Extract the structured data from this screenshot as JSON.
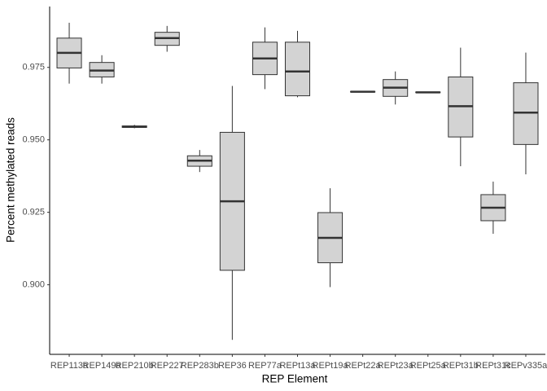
{
  "chart_data": {
    "type": "box",
    "x_label": "REP Element",
    "y_label": "Percent methylated reads",
    "categories": [
      "REP113a",
      "REP149a",
      "REP210b",
      "REP227",
      "REP283b",
      "REP36",
      "REP77a",
      "REPt13a",
      "REPt19a",
      "REPt22a",
      "REPt23a",
      "REPt25a",
      "REPt31b",
      "REPt31c",
      "REPv335a"
    ],
    "boxes": [
      {
        "low": 0.9694,
        "q1": 0.9748,
        "median": 0.98,
        "q3": 0.9851,
        "high": 0.9904
      },
      {
        "low": 0.9694,
        "q1": 0.9717,
        "median": 0.9739,
        "q3": 0.9767,
        "high": 0.9792
      },
      {
        "low": 0.954,
        "q1": 0.9543,
        "median": 0.9545,
        "q3": 0.9548,
        "high": 0.9552
      },
      {
        "low": 0.9804,
        "q1": 0.9826,
        "median": 0.9851,
        "q3": 0.9871,
        "high": 0.9893
      },
      {
        "low": 0.9389,
        "q1": 0.9409,
        "median": 0.9428,
        "q3": 0.9445,
        "high": 0.9465
      },
      {
        "low": 0.881,
        "q1": 0.905,
        "median": 0.9288,
        "q3": 0.9526,
        "high": 0.9686
      },
      {
        "low": 0.9675,
        "q1": 0.9725,
        "median": 0.9781,
        "q3": 0.9837,
        "high": 0.9888
      },
      {
        "low": 0.9647,
        "q1": 0.9652,
        "median": 0.9736,
        "q3": 0.9837,
        "high": 0.9876
      },
      {
        "low": 0.8992,
        "q1": 0.9076,
        "median": 0.9162,
        "q3": 0.9249,
        "high": 0.9333
      },
      {
        "low": 0.9664,
        "q1": 0.9665,
        "median": 0.9666,
        "q3": 0.9667,
        "high": 0.9668
      },
      {
        "low": 0.9622,
        "q1": 0.965,
        "median": 0.968,
        "q3": 0.9708,
        "high": 0.9736
      },
      {
        "low": 0.9663,
        "q1": 0.9663,
        "median": 0.9664,
        "q3": 0.9665,
        "high": 0.9665
      },
      {
        "low": 0.9409,
        "q1": 0.951,
        "median": 0.9616,
        "q3": 0.9717,
        "high": 0.9818
      },
      {
        "low": 0.9176,
        "q1": 0.9221,
        "median": 0.9266,
        "q3": 0.9311,
        "high": 0.9356
      },
      {
        "low": 0.9381,
        "q1": 0.9484,
        "median": 0.9594,
        "q3": 0.9697,
        "high": 0.9801
      }
    ],
    "color": "#d3d3d3",
    "ylim": [
      0.876,
      0.996
    ],
    "yticks": [
      {
        "value": 0.9,
        "label": "0.900"
      },
      {
        "value": 0.925,
        "label": "0.925"
      },
      {
        "value": 0.95,
        "label": "0.950"
      },
      {
        "value": 0.975,
        "label": "0.975"
      }
    ],
    "grid": false
  }
}
